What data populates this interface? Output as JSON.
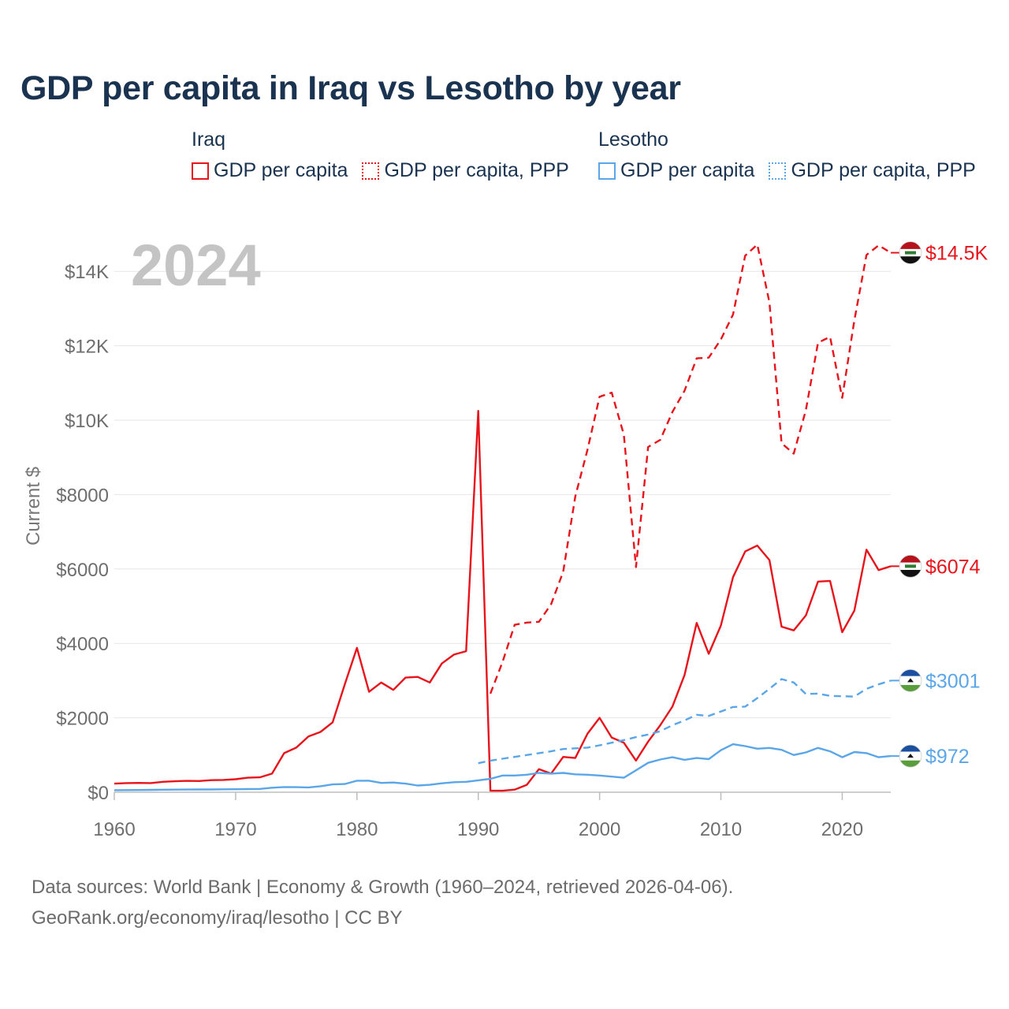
{
  "title": "GDP per capita in Iraq vs Lesotho by year",
  "legend": {
    "groups": [
      {
        "country": "Iraq",
        "items": [
          {
            "label": "GDP per capita",
            "style": "solid",
            "color": "#e8141b"
          },
          {
            "label": "GDP per capita, PPP",
            "style": "dotted",
            "color": "#e8141b"
          }
        ]
      },
      {
        "country": "Lesotho",
        "items": [
          {
            "label": "GDP per capita",
            "style": "solid",
            "color": "#5aa6e8"
          },
          {
            "label": "GDP per capita, PPP",
            "style": "dotted",
            "color": "#5aa6e8"
          }
        ]
      }
    ]
  },
  "year_label": "2024",
  "footer": {
    "line1": "Data sources: World Bank | Economy & Growth (1960–2024, retrieved 2026-04-06).",
    "line2": "GeoRank.org/economy/iraq/lesotho | CC BY"
  },
  "chart_data": {
    "type": "line",
    "title": "GDP per capita in Iraq vs Lesotho by year",
    "xlabel": "",
    "ylabel": "Current $",
    "xlim": [
      1960,
      2024
    ],
    "ylim": [
      0,
      14800
    ],
    "x_ticks": [
      1960,
      1970,
      1980,
      1990,
      2000,
      2010,
      2020
    ],
    "y_ticks": [
      0,
      2000,
      4000,
      6000,
      8000,
      10000,
      12000,
      14000
    ],
    "y_tick_labels": [
      "$0",
      "$2000",
      "$4000",
      "$6000",
      "$8000",
      "$10K",
      "$12K",
      "$14K"
    ],
    "grid": true,
    "series": [
      {
        "name": "Iraq GDP per capita",
        "color": "#e8141b",
        "dash": "solid",
        "end_label": "$6074",
        "flag": "iraq",
        "x": [
          1960,
          1961,
          1962,
          1963,
          1964,
          1965,
          1966,
          1967,
          1968,
          1969,
          1970,
          1971,
          1972,
          1973,
          1974,
          1975,
          1976,
          1977,
          1978,
          1979,
          1980,
          1981,
          1982,
          1983,
          1984,
          1985,
          1986,
          1987,
          1988,
          1989,
          1990,
          1991,
          1992,
          1993,
          1994,
          1995,
          1996,
          1997,
          1998,
          1999,
          2000,
          2001,
          2002,
          2003,
          2004,
          2005,
          2006,
          2007,
          2008,
          2009,
          2010,
          2011,
          2012,
          2013,
          2014,
          2015,
          2016,
          2017,
          2018,
          2019,
          2020,
          2021,
          2022,
          2023,
          2024
        ],
        "y": [
          230,
          245,
          250,
          245,
          280,
          295,
          305,
          300,
          325,
          330,
          350,
          390,
          400,
          500,
          1050,
          1200,
          1500,
          1620,
          1880,
          2900,
          3880,
          2700,
          2950,
          2750,
          3080,
          3100,
          2950,
          3460,
          3700,
          3790,
          10250,
          40,
          40,
          70,
          200,
          620,
          500,
          950,
          920,
          1570,
          2000,
          1470,
          1330,
          850,
          1360,
          1800,
          2300,
          3150,
          4550,
          3720,
          4480,
          5780,
          6470,
          6630,
          6240,
          4450,
          4350,
          4750,
          5660,
          5680,
          4300,
          4880,
          6520,
          5970,
          6074
        ]
      },
      {
        "name": "Iraq GDP per capita, PPP",
        "color": "#e8141b",
        "dash": "dashed",
        "end_label": "$14.5K",
        "flag": "iraq",
        "x": [
          1991,
          1992,
          1993,
          1994,
          1995,
          1996,
          1997,
          1998,
          1999,
          2000,
          2001,
          2002,
          2003,
          2004,
          2005,
          2006,
          2007,
          2008,
          2009,
          2010,
          2011,
          2012,
          2013,
          2014,
          2015,
          2016,
          2017,
          2018,
          2019,
          2020,
          2021,
          2022,
          2023,
          2024
        ],
        "y": [
          2650,
          3500,
          4500,
          4560,
          4580,
          5050,
          5930,
          7950,
          9200,
          10630,
          10740,
          9610,
          6050,
          9280,
          9470,
          10220,
          10790,
          11660,
          11680,
          12170,
          12840,
          14420,
          14720,
          13160,
          9380,
          9100,
          10270,
          12080,
          12240,
          10600,
          12680,
          14440,
          14700,
          14500
        ]
      },
      {
        "name": "Lesotho GDP per capita",
        "color": "#5aa6e8",
        "dash": "solid",
        "end_label": "$972",
        "flag": "lesotho",
        "x": [
          1960,
          1961,
          1962,
          1963,
          1964,
          1965,
          1966,
          1967,
          1968,
          1969,
          1970,
          1971,
          1972,
          1973,
          1974,
          1975,
          1976,
          1977,
          1978,
          1979,
          1980,
          1981,
          1982,
          1983,
          1984,
          1985,
          1986,
          1987,
          1988,
          1989,
          1990,
          1991,
          1992,
          1993,
          1994,
          1995,
          1996,
          1997,
          1998,
          1999,
          2000,
          2001,
          2002,
          2003,
          2004,
          2005,
          2006,
          2007,
          2008,
          2009,
          2010,
          2011,
          2012,
          2013,
          2014,
          2015,
          2016,
          2017,
          2018,
          2019,
          2020,
          2021,
          2022,
          2023,
          2024
        ],
        "y": [
          55,
          58,
          60,
          63,
          68,
          70,
          72,
          74,
          75,
          78,
          80,
          85,
          90,
          120,
          140,
          135,
          130,
          160,
          210,
          220,
          310,
          310,
          250,
          260,
          230,
          180,
          200,
          240,
          270,
          280,
          320,
          360,
          450,
          450,
          470,
          520,
          500,
          520,
          480,
          470,
          450,
          420,
          390,
          590,
          790,
          880,
          940,
          870,
          920,
          890,
          1130,
          1290,
          1240,
          1170,
          1190,
          1140,
          1000,
          1070,
          1190,
          1100,
          940,
          1080,
          1050,
          940,
          972
        ]
      },
      {
        "name": "Lesotho GDP per capita, PPP",
        "color": "#5aa6e8",
        "dash": "dashed",
        "end_label": "$3001",
        "flag": "lesotho",
        "x": [
          1990,
          1991,
          1992,
          1993,
          1994,
          1995,
          1996,
          1997,
          1998,
          1999,
          2000,
          2001,
          2002,
          2003,
          2004,
          2005,
          2006,
          2007,
          2008,
          2009,
          2010,
          2011,
          2012,
          2013,
          2014,
          2015,
          2016,
          2017,
          2018,
          2019,
          2020,
          2021,
          2022,
          2023,
          2024
        ],
        "y": [
          780,
          850,
          900,
          950,
          1000,
          1050,
          1100,
          1160,
          1180,
          1200,
          1260,
          1330,
          1400,
          1480,
          1550,
          1640,
          1800,
          1930,
          2080,
          2050,
          2170,
          2290,
          2300,
          2530,
          2780,
          3040,
          2950,
          2640,
          2650,
          2590,
          2580,
          2570,
          2780,
          2900,
          3001
        ]
      }
    ]
  }
}
